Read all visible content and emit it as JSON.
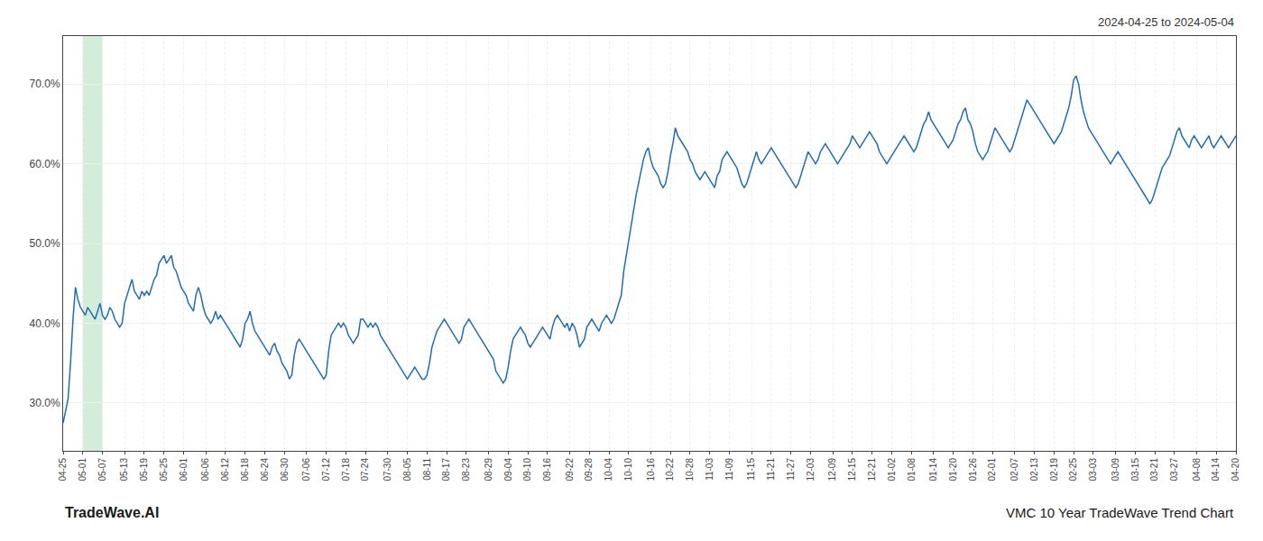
{
  "chart_data": {
    "type": "line",
    "annotations": [
      "2024-04-25 to 2024-05-04",
      "TradeWave.AI",
      "VMC 10 Year TradeWave Trend Chart"
    ],
    "color": "#1f6eb5",
    "highlight": {
      "from": "05-01",
      "to": "05-07",
      "color": "#d4edda"
    },
    "ylim": [
      24,
      76
    ],
    "yticks": [
      {
        "value": 30.0,
        "label": "30.0%"
      },
      {
        "value": 40.0,
        "label": "40.0%"
      },
      {
        "value": 50.0,
        "label": "50.0%"
      },
      {
        "value": 60.0,
        "label": "60.0%"
      },
      {
        "value": 70.0,
        "label": "70.0%"
      }
    ],
    "grid": true,
    "categories": [
      "04-25",
      null,
      null,
      null,
      null,
      null,
      null,
      null,
      "05-01",
      null,
      null,
      null,
      null,
      null,
      null,
      null,
      "05-07",
      null,
      null,
      null,
      null,
      null,
      null,
      null,
      null,
      "05-13",
      null,
      null,
      null,
      null,
      null,
      null,
      null,
      "05-19",
      null,
      null,
      null,
      null,
      null,
      null,
      null,
      "05-25",
      null,
      null,
      null,
      null,
      null,
      null,
      null,
      "06-01",
      null,
      null,
      null,
      null,
      null,
      null,
      null,
      null,
      "06-06",
      null,
      null,
      null,
      null,
      null,
      null,
      null,
      "06-12",
      null,
      null,
      null,
      null,
      null,
      null,
      null,
      "06-18",
      null,
      null,
      null,
      null,
      null,
      null,
      null,
      "06-24",
      null,
      null,
      null,
      null,
      null,
      null,
      null,
      "06-30",
      null,
      null,
      null,
      null,
      null,
      null,
      null,
      null,
      "07-06",
      null,
      null,
      null,
      null,
      null,
      null,
      null,
      "07-12",
      null,
      null,
      null,
      null,
      null,
      null,
      null,
      "07-18",
      null,
      null,
      null,
      null,
      null,
      null,
      null,
      "07-24",
      null,
      null,
      null,
      null,
      null,
      null,
      null,
      null,
      "07-30",
      null,
      null,
      null,
      null,
      null,
      null,
      null,
      "08-05",
      null,
      null,
      null,
      null,
      null,
      null,
      null,
      "08-11",
      null,
      null,
      null,
      null,
      null,
      null,
      null,
      "08-17",
      null,
      null,
      null,
      null,
      null,
      null,
      null,
      "08-23",
      null,
      null,
      null,
      null,
      null,
      null,
      null,
      null,
      "08-29",
      null,
      null,
      null,
      null,
      null,
      null,
      null,
      "09-04",
      null,
      null,
      null,
      null,
      null,
      null,
      null,
      "09-10",
      null,
      null,
      null,
      null,
      null,
      null,
      null,
      "09-16",
      null,
      null,
      null,
      null,
      null,
      null,
      null,
      null,
      "09-22",
      null,
      null,
      null,
      null,
      null,
      null,
      null,
      "09-28",
      null,
      null,
      null,
      null,
      null,
      null,
      null,
      "10-04",
      null,
      null,
      null,
      null,
      null,
      null,
      null,
      "10-10",
      null,
      null,
      null,
      null,
      null,
      null,
      null,
      null,
      "10-16",
      null,
      null,
      null,
      null,
      null,
      null,
      null,
      "10-22",
      null,
      null,
      null,
      null,
      null,
      null,
      null,
      "10-28",
      null,
      null,
      null,
      null,
      null,
      null,
      null,
      "11-03",
      null,
      null,
      null,
      null,
      null,
      null,
      null,
      "11-09",
      null,
      null,
      null,
      null,
      null,
      null,
      null,
      null,
      "11-15",
      null,
      null,
      null,
      null,
      null,
      null,
      null,
      "11-21",
      null,
      null,
      null,
      null,
      null,
      null,
      null,
      "11-27",
      null,
      null,
      null,
      null,
      null,
      null,
      null,
      "12-03",
      null,
      null,
      null,
      null,
      null,
      null,
      null,
      null,
      "12-09",
      null,
      null,
      null,
      null,
      null,
      null,
      null,
      "12-15",
      null,
      null,
      null,
      null,
      null,
      null,
      null,
      "12-21",
      null,
      null,
      null,
      null,
      null,
      null,
      null,
      "01-02",
      null,
      null,
      null,
      null,
      null,
      null,
      null,
      "01-08",
      null,
      null,
      null,
      null,
      null,
      null,
      null,
      null,
      "01-14",
      null,
      null,
      null,
      null,
      null,
      null,
      null,
      "01-20",
      null,
      null,
      null,
      null,
      null,
      null,
      null,
      "01-26",
      null,
      null,
      null,
      null,
      null,
      null,
      null,
      "02-01",
      null,
      null,
      null,
      null,
      null,
      null,
      null,
      null,
      "02-07",
      null,
      null,
      null,
      null,
      null,
      null,
      null,
      "02-13",
      null,
      null,
      null,
      null,
      null,
      null,
      null,
      "02-19",
      null,
      null,
      null,
      null,
      null,
      null,
      null,
      "02-25",
      null,
      null,
      null,
      null,
      null,
      null,
      null,
      "03-03",
      null,
      null,
      null,
      null,
      null,
      null,
      null,
      null,
      "03-09",
      null,
      null,
      null,
      null,
      null,
      null,
      null,
      "03-15",
      null,
      null,
      null,
      null,
      null,
      null,
      null,
      "03-21",
      null,
      null,
      null,
      null,
      null,
      null,
      null,
      "03-27",
      null,
      null,
      null,
      null,
      null,
      null,
      null,
      null,
      "04-08",
      null,
      null,
      null,
      null,
      null,
      null,
      null,
      "04-14",
      null,
      null,
      null,
      null,
      null,
      null,
      null,
      "04-20"
    ],
    "values": [
      27.5,
      29.0,
      30.5,
      35.0,
      40.5,
      44.5,
      43.0,
      42.0,
      41.5,
      41.0,
      42.0,
      41.5,
      41.0,
      40.5,
      41.5,
      42.5,
      41.0,
      40.5,
      41.0,
      42.0,
      41.5,
      40.5,
      40.0,
      39.5,
      40.0,
      42.5,
      43.5,
      44.5,
      45.5,
      44.0,
      43.5,
      43.0,
      44.0,
      43.5,
      44.0,
      43.5,
      44.5,
      45.5,
      46.0,
      47.5,
      48.0,
      48.5,
      47.5,
      48.0,
      48.5,
      47.0,
      46.5,
      45.5,
      44.5,
      44.0,
      43.5,
      42.5,
      42.0,
      41.5,
      43.5,
      44.5,
      43.5,
      42.0,
      41.0,
      40.5,
      40.0,
      40.5,
      41.5,
      40.5,
      41.0,
      40.5,
      40.0,
      39.5,
      39.0,
      38.5,
      38.0,
      37.5,
      37.0,
      38.0,
      40.0,
      40.5,
      41.5,
      40.0,
      39.0,
      38.5,
      38.0,
      37.5,
      37.0,
      36.5,
      36.0,
      37.0,
      37.5,
      36.5,
      36.0,
      35.0,
      34.5,
      34.0,
      33.0,
      33.5,
      36.0,
      37.5,
      38.0,
      37.5,
      37.0,
      36.5,
      36.0,
      35.5,
      35.0,
      34.5,
      34.0,
      33.5,
      33.0,
      33.5,
      36.5,
      38.5,
      39.0,
      39.5,
      40.0,
      39.5,
      40.0,
      39.5,
      38.5,
      38.0,
      37.5,
      38.0,
      38.5,
      40.5,
      40.5,
      40.0,
      39.5,
      40.0,
      39.5,
      40.0,
      39.5,
      38.5,
      38.0,
      37.5,
      37.0,
      36.5,
      36.0,
      35.5,
      35.0,
      34.5,
      34.0,
      33.5,
      33.0,
      33.5,
      34.0,
      34.5,
      34.0,
      33.5,
      33.0,
      33.0,
      33.5,
      35.0,
      37.0,
      38.0,
      39.0,
      39.5,
      40.0,
      40.5,
      40.0,
      39.5,
      39.0,
      38.5,
      38.0,
      37.5,
      38.0,
      39.5,
      40.0,
      40.5,
      40.0,
      39.5,
      39.0,
      38.5,
      38.0,
      37.5,
      37.0,
      36.5,
      36.0,
      35.5,
      34.0,
      33.5,
      33.0,
      32.5,
      33.0,
      34.5,
      36.5,
      38.0,
      38.5,
      39.0,
      39.5,
      39.0,
      38.5,
      37.5,
      37.0,
      37.5,
      38.0,
      38.5,
      39.0,
      39.5,
      39.0,
      38.5,
      38.0,
      39.5,
      40.5,
      41.0,
      40.5,
      40.0,
      39.5,
      40.0,
      39.0,
      40.0,
      39.5,
      38.5,
      37.0,
      37.5,
      38.0,
      39.5,
      40.0,
      40.5,
      40.0,
      39.5,
      39.0,
      40.0,
      40.5,
      41.0,
      40.5,
      40.0,
      40.5,
      41.5,
      42.5,
      43.5,
      46.5,
      48.5,
      50.5,
      52.0,
      54.5,
      56.0,
      57.5,
      59.0,
      60.5,
      61.5,
      62.0,
      60.5,
      59.5,
      59.0,
      58.5,
      57.5,
      57.0,
      57.5,
      59.0,
      61.0,
      62.5,
      64.5,
      63.5,
      63.0,
      62.5,
      62.0,
      61.5,
      60.5,
      60.0,
      59.0,
      58.5,
      58.0,
      58.5,
      59.0,
      58.5,
      58.0,
      57.5,
      57.0,
      58.5,
      59.0,
      60.5,
      61.0,
      61.5,
      61.0,
      60.5,
      60.0,
      59.5,
      58.5,
      57.5,
      57.0,
      57.5,
      58.5,
      59.5,
      60.5,
      61.5,
      60.5,
      60.0,
      60.5,
      61.0,
      61.5,
      62.0,
      61.5,
      61.0,
      60.5,
      60.0,
      59.5,
      59.0,
      58.5,
      58.0,
      57.5,
      57.0,
      57.5,
      58.5,
      59.5,
      60.5,
      61.5,
      61.0,
      60.5,
      60.0,
      60.5,
      61.5,
      62.0,
      62.5,
      62.0,
      61.5,
      61.0,
      60.5,
      60.0,
      60.5,
      61.0,
      61.5,
      62.0,
      62.5,
      63.5,
      63.0,
      62.5,
      62.0,
      62.5,
      63.0,
      63.5,
      64.0,
      63.5,
      63.0,
      62.5,
      61.5,
      61.0,
      60.5,
      60.0,
      60.5,
      61.0,
      61.5,
      62.0,
      62.5,
      63.0,
      63.5,
      63.0,
      62.5,
      62.0,
      61.5,
      62.0,
      63.0,
      64.0,
      65.0,
      65.5,
      66.5,
      65.5,
      65.0,
      64.5,
      64.0,
      63.5,
      63.0,
      62.5,
      62.0,
      62.5,
      63.0,
      64.0,
      65.0,
      65.5,
      66.5,
      67.0,
      65.5,
      65.0,
      64.0,
      62.5,
      61.5,
      61.0,
      60.5,
      61.0,
      61.5,
      62.5,
      63.5,
      64.5,
      64.0,
      63.5,
      63.0,
      62.5,
      62.0,
      61.5,
      62.0,
      63.0,
      64.0,
      65.0,
      66.0,
      67.0,
      68.0,
      67.5,
      67.0,
      66.5,
      66.0,
      65.5,
      65.0,
      64.5,
      64.0,
      63.5,
      63.0,
      62.5,
      63.0,
      63.5,
      64.0,
      65.0,
      66.0,
      67.0,
      68.5,
      70.5,
      71.0,
      70.0,
      68.0,
      66.5,
      65.5,
      64.5,
      64.0,
      63.5,
      63.0,
      62.5,
      62.0,
      61.5,
      61.0,
      60.5,
      60.0,
      60.5,
      61.0,
      61.5,
      61.0,
      60.5,
      60.0,
      59.5,
      59.0,
      58.5,
      58.0,
      57.5,
      57.0,
      56.5,
      56.0,
      55.5,
      55.0,
      55.5,
      56.5,
      57.5,
      58.5,
      59.5,
      60.0,
      60.5,
      61.0,
      62.0,
      63.0,
      64.0,
      64.5,
      63.5,
      63.0,
      62.5,
      62.0,
      63.0,
      63.5,
      63.0,
      62.5,
      62.0,
      62.5,
      63.0,
      63.5,
      62.5,
      62.0,
      62.5,
      63.0,
      63.5,
      63.0,
      62.5,
      62.0,
      62.5,
      63.0,
      63.5
    ]
  }
}
